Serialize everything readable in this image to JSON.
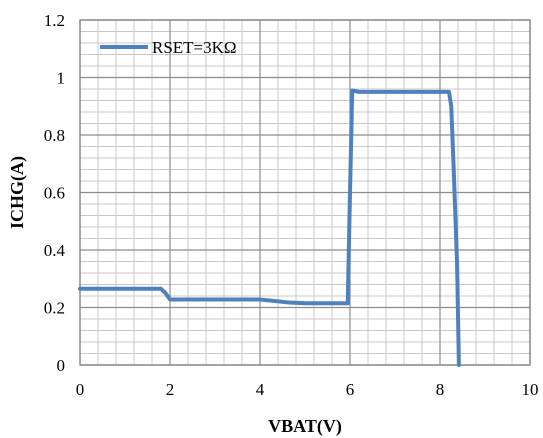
{
  "chart_data": {
    "type": "line",
    "title": "",
    "xlabel": "VBAT(V)",
    "ylabel": "ICHG(A)",
    "xlim": [
      0,
      10
    ],
    "ylim": [
      0,
      1.2
    ],
    "xticks": [
      0,
      2,
      4,
      6,
      8,
      10
    ],
    "yticks": [
      0,
      0.2,
      0.4,
      0.6,
      0.8,
      1,
      1.2
    ],
    "xtick_labels": [
      "0",
      "2",
      "4",
      "6",
      "8",
      "10"
    ],
    "ytick_labels": [
      "0",
      "0.2",
      "0.4",
      "0.6",
      "0.8",
      "1",
      "1.2"
    ],
    "grid": true,
    "minor_grid": true,
    "legend_position": "top-left",
    "series": [
      {
        "name": "RSET=3KΩ",
        "color": "#4f81bd",
        "x": [
          0,
          1.8,
          1.9,
          2.0,
          4.0,
          4.6,
          5.0,
          5.95,
          6.0,
          6.05,
          6.2,
          8.2,
          8.25,
          8.3,
          8.38,
          8.42
        ],
        "y": [
          0.265,
          0.265,
          0.25,
          0.228,
          0.228,
          0.218,
          0.215,
          0.215,
          0.6,
          0.955,
          0.95,
          0.95,
          0.9,
          0.7,
          0.35,
          0.0
        ]
      }
    ]
  }
}
